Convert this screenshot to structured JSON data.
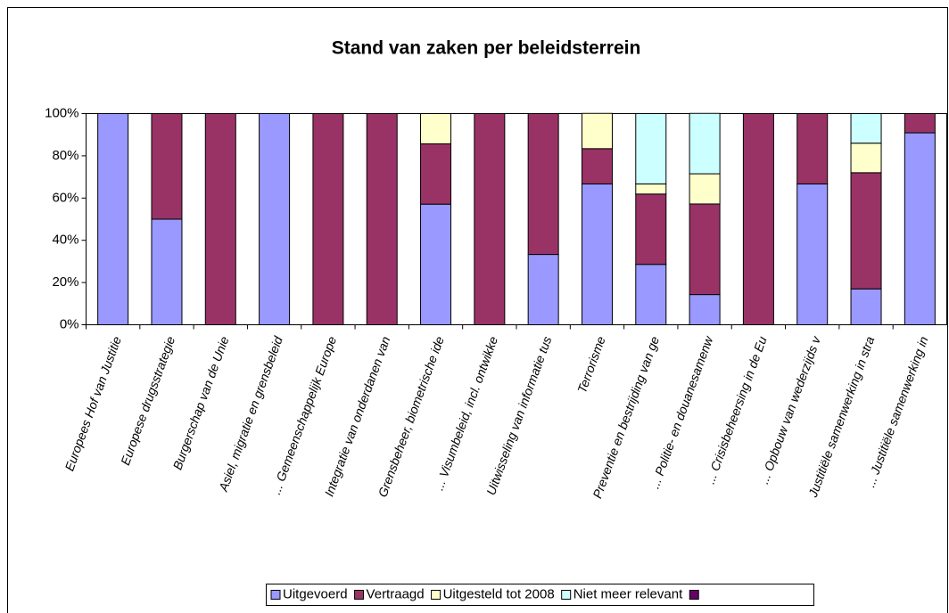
{
  "chart_data": {
    "type": "stacked_bar",
    "title": "Stand van zaken per beleidsterrein",
    "categories": [
      "Europees Hof van Justitie",
      "Europese drugsstrategie",
      "Burgerschap van de Unie",
      "Asiel, migratie en grensbeleid",
      "... Gemeenschappelijk Europe",
      "Integratie van onderdanen van",
      "Grensbeheer, biometrische ide",
      "... Visumbeleid, incl. ontwikke",
      "Uitwisseling van informatie tus",
      "Terrorisme",
      "Preventie en bestrijding van ge",
      "... Politie- en douanesamenw",
      "... Crisisbeheersing in de Eu",
      "... Opbouw van wederzijds v",
      "Justitiële samenwerking in stra",
      "... Justitiële samenwerking in"
    ],
    "series": [
      {
        "name": "Uitgevoerd",
        "color": "#9999ff",
        "values": [
          100,
          50,
          0,
          100,
          0,
          0,
          57.1,
          0,
          33.3,
          66.7,
          28.6,
          14.3,
          0,
          66.7,
          17,
          90.9
        ]
      },
      {
        "name": "Vertraagd",
        "color": "#993366",
        "values": [
          0,
          50,
          100,
          0,
          100,
          100,
          28.6,
          100,
          66.7,
          16.7,
          33.3,
          42.9,
          100,
          33.3,
          55,
          9.1
        ]
      },
      {
        "name": "Uitgesteld tot 2008",
        "color": "#ffffcc",
        "values": [
          0,
          0,
          0,
          0,
          0,
          0,
          14.3,
          0,
          0,
          16.7,
          4.8,
          14.3,
          0,
          0,
          14,
          0
        ]
      },
      {
        "name": "Niet meer relevant",
        "color": "#ccffff",
        "values": [
          0,
          0,
          0,
          0,
          0,
          0,
          0,
          0,
          0,
          0,
          33.3,
          28.6,
          0,
          0,
          14,
          0
        ]
      }
    ],
    "ylim": [
      0,
      100
    ],
    "yticks": [
      {
        "value": 0,
        "label": "0%"
      },
      {
        "value": 20,
        "label": "20%"
      },
      {
        "value": 40,
        "label": "40%"
      },
      {
        "value": 60,
        "label": "60%"
      },
      {
        "value": 80,
        "label": "80%"
      },
      {
        "value": 100,
        "label": "100%"
      }
    ]
  }
}
